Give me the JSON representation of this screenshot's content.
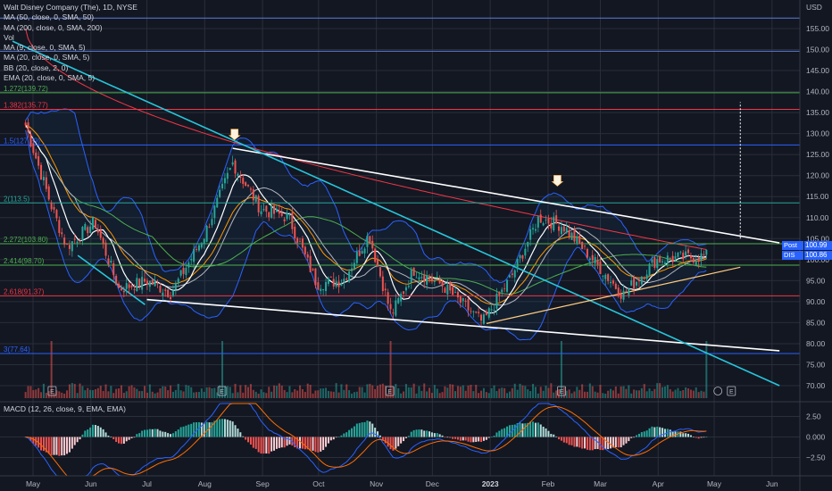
{
  "symbol_title": "Walt Disney Company (The), 1D, NYSE",
  "currency": "USD",
  "indicators": [
    "MA (50, close, 0, SMA, 50)",
    "MA (200, close, 0, SMA, 200)",
    "Vol",
    "MA (9, close, 0, SMA, 5)",
    "MA (20, close, 0, SMA, 5)",
    "BB (20, close, 2, 0)",
    "EMA (20, close, 0, SMA, 5)"
  ],
  "macd_title": "MACD (12, 26, close, 9, EMA, EMA)",
  "price_tags": [
    {
      "label": "Post",
      "value": "100.99",
      "color": "#2962ff"
    },
    {
      "label": "DIS",
      "value": "100.86",
      "color": "#2962ff"
    }
  ],
  "colors": {
    "background": "#131722",
    "grid": "#2a2e39",
    "up": "#26a69a",
    "down": "#ef5350",
    "bb": "#2962ff",
    "ma50": "#4caf50",
    "ma200": "#f23645",
    "trend_white": "#ffffff",
    "trend_cyan": "#26c6da",
    "fib_green": "#4caf50",
    "fib_red": "#f23645",
    "fib_blue": "#2962ff",
    "fib_teal": "#26a69a"
  },
  "chart_data": {
    "type": "candlestick",
    "title": "Walt Disney Company (The), 1D, NYSE",
    "y_axis_ticks": [
      155.0,
      150.0,
      145.0,
      140.0,
      135.0,
      130.0,
      125.0,
      120.0,
      115.0,
      110.0,
      105.0,
      100.0,
      95.0,
      90.0,
      85.0,
      80.0,
      75.0,
      70.0
    ],
    "x_axis_ticks": [
      "May",
      "Jun",
      "Jul",
      "Aug",
      "Sep",
      "Oct",
      "Nov",
      "Dec",
      "2023",
      "Feb",
      "Mar",
      "Apr",
      "May",
      "Jun"
    ],
    "ylim": [
      68,
      158
    ],
    "fib_levels": [
      {
        "label": "1.272(139.72)",
        "value": 139.72,
        "color": "#4caf50"
      },
      {
        "label": "1.382(135.77)",
        "value": 135.77,
        "color": "#f23645"
      },
      {
        "label": "1.5(127.29)",
        "value": 127.29,
        "color": "#2962ff"
      },
      {
        "label": "2(113.5)",
        "value": 113.5,
        "color": "#26a69a"
      },
      {
        "label": "2.272(103.80)",
        "value": 103.8,
        "color": "#4caf50"
      },
      {
        "label": "2.414(98.70)",
        "value": 98.7,
        "color": "#4caf50"
      },
      {
        "label": "2.618(91.37)",
        "value": 91.37,
        "color": "#f23645"
      },
      {
        "label": "3(77.64)",
        "value": 77.64,
        "color": "#2962ff"
      }
    ],
    "top_lines": [
      157.5,
      149.6
    ],
    "trendlines": [
      {
        "name": "upper-resistance",
        "points": [
          [
            "2022-08-16",
            126.5
          ],
          [
            "2023-06-05",
            104.0
          ]
        ],
        "color": "#ffffff"
      },
      {
        "name": "lower-support",
        "points": [
          [
            "2022-07-01",
            90.5
          ],
          [
            "2023-06-05",
            78.3
          ]
        ],
        "color": "#ffffff"
      },
      {
        "name": "cyan-channel",
        "points": [
          [
            "2022-04-20",
            152.0
          ],
          [
            "2023-06-05",
            70.0
          ]
        ],
        "color": "#26c6da"
      },
      {
        "name": "cyan-channel-lower",
        "points": [
          [
            "2022-05-25",
            101.0
          ],
          [
            "2022-06-30",
            89.3
          ]
        ],
        "color": "#26c6da"
      },
      {
        "name": "rising-support",
        "points": [
          [
            "2022-12-30",
            84.8
          ],
          [
            "2023-05-15",
            98.2
          ]
        ],
        "color": "#ffcc80"
      }
    ],
    "target_measure": {
      "date": "2023-05-15",
      "from": 105.0,
      "to": 137.5
    },
    "arrows": [
      {
        "date": "2022-08-17",
        "price": 128.5
      },
      {
        "date": "2023-02-06",
        "price": 117.5
      }
    ],
    "earnings_dates": [
      "2022-05-11",
      "2022-08-10",
      "2022-11-08",
      "2023-02-08",
      "2023-05-10"
    ],
    "closes": [
      {
        "date": "2022-04-27",
        "close": 132.0
      },
      {
        "date": "2022-05-11",
        "close": 112.5
      },
      {
        "date": "2022-05-19",
        "close": 103.0
      },
      {
        "date": "2022-06-03",
        "close": 109.0
      },
      {
        "date": "2022-06-16",
        "close": 93.0
      },
      {
        "date": "2022-07-01",
        "close": 95.0
      },
      {
        "date": "2022-07-14",
        "close": 92.0
      },
      {
        "date": "2022-08-01",
        "close": 106.0
      },
      {
        "date": "2022-08-16",
        "close": 123.0
      },
      {
        "date": "2022-08-31",
        "close": 112.0
      },
      {
        "date": "2022-09-15",
        "close": 110.0
      },
      {
        "date": "2022-09-30",
        "close": 94.3
      },
      {
        "date": "2022-10-14",
        "close": 95.0
      },
      {
        "date": "2022-10-28",
        "close": 106.0
      },
      {
        "date": "2022-11-09",
        "close": 86.8
      },
      {
        "date": "2022-11-21",
        "close": 97.5
      },
      {
        "date": "2022-12-06",
        "close": 94.0
      },
      {
        "date": "2022-12-28",
        "close": 85.0
      },
      {
        "date": "2023-01-13",
        "close": 96.5
      },
      {
        "date": "2023-01-27",
        "close": 110.0
      },
      {
        "date": "2023-02-09",
        "close": 108.0
      },
      {
        "date": "2023-02-24",
        "close": 100.5
      },
      {
        "date": "2023-03-13",
        "close": 91.6
      },
      {
        "date": "2023-03-31",
        "close": 100.0
      },
      {
        "date": "2023-04-14",
        "close": 100.5
      },
      {
        "date": "2023-04-28",
        "close": 100.86
      }
    ],
    "macd_axis_ticks": [
      2.5,
      0.0,
      -2.5
    ],
    "macd_axis_labels": [
      "2.50",
      "0.000",
      "−2.50"
    ],
    "macd_ylim": [
      -4.2,
      4.2
    ]
  }
}
